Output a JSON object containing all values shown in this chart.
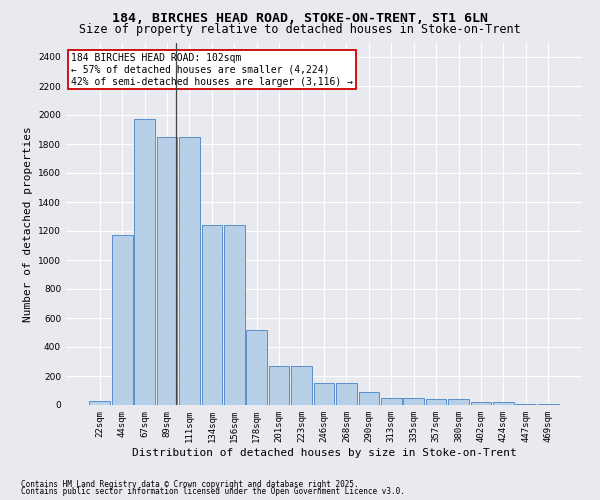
{
  "title1": "184, BIRCHES HEAD ROAD, STOKE-ON-TRENT, ST1 6LN",
  "title2": "Size of property relative to detached houses in Stoke-on-Trent",
  "xlabel": "Distribution of detached houses by size in Stoke-on-Trent",
  "ylabel": "Number of detached properties",
  "bar_labels": [
    "22sqm",
    "44sqm",
    "67sqm",
    "89sqm",
    "111sqm",
    "134sqm",
    "156sqm",
    "178sqm",
    "201sqm",
    "223sqm",
    "246sqm",
    "268sqm",
    "290sqm",
    "313sqm",
    "335sqm",
    "357sqm",
    "380sqm",
    "402sqm",
    "424sqm",
    "447sqm",
    "469sqm"
  ],
  "bar_values": [
    25,
    1175,
    1975,
    1850,
    1850,
    1240,
    1240,
    515,
    270,
    270,
    155,
    155,
    88,
    48,
    48,
    38,
    38,
    18,
    18,
    8,
    8
  ],
  "bar_color": "#b8cfe8",
  "bar_edge_color": "#5b8fc9",
  "background_color": "#e8eaf0",
  "grid_color": "#ffffff",
  "ylim": [
    0,
    2500
  ],
  "yticks": [
    0,
    200,
    400,
    600,
    800,
    1000,
    1200,
    1400,
    1600,
    1800,
    2000,
    2200,
    2400
  ],
  "property_label": "184 BIRCHES HEAD ROAD: 102sqm",
  "annotation_line1": "← 57% of detached houses are smaller (4,224)",
  "annotation_line2": "42% of semi-detached houses are larger (3,116) →",
  "vline_x": 3.42,
  "footnote1": "Contains HM Land Registry data © Crown copyright and database right 2025.",
  "footnote2": "Contains public sector information licensed under the Open Government Licence v3.0.",
  "title1_fontsize": 9.5,
  "title2_fontsize": 8.5,
  "xlabel_fontsize": 8,
  "ylabel_fontsize": 8,
  "tick_fontsize": 6.5,
  "annotation_fontsize": 7,
  "footnote_fontsize": 5.5
}
